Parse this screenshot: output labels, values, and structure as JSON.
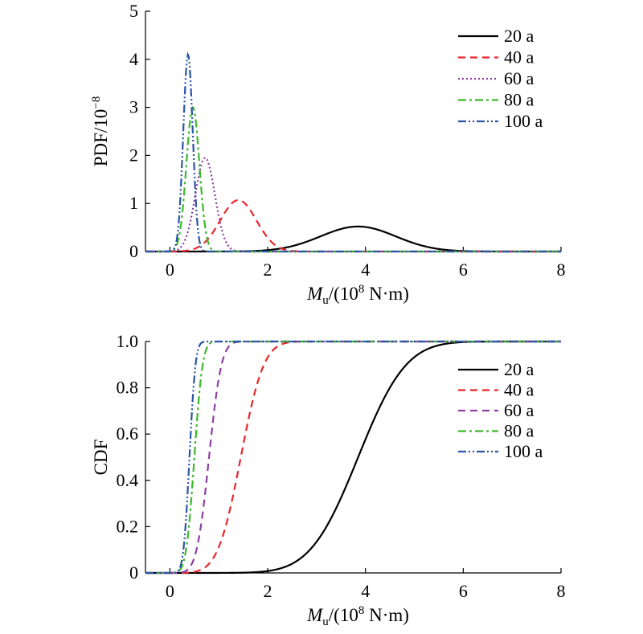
{
  "chart_data": [
    {
      "type": "line",
      "id": "pdf",
      "ylabel": "PDF/10",
      "ylabel_exponent": "−8",
      "xlabel_main": "M",
      "xlabel_sub": "u",
      "xlabel_rest": "/(10",
      "xlabel_exp": "8",
      "xlabel_unit": " N·m)",
      "xlim": [
        -0.5,
        8
      ],
      "ylim": [
        0,
        5
      ],
      "xticks": [
        0,
        2,
        4,
        6,
        8
      ],
      "yticks": [
        0,
        1,
        2,
        3,
        4,
        5
      ],
      "ytick_labels": [
        "0",
        "1",
        "2",
        "3",
        "4",
        "5"
      ],
      "legend_position": "top-right",
      "series": [
        {
          "name": "20 a",
          "color": "#000000",
          "dash": "solid",
          "peak_x": 3.85,
          "peak_y": 0.52,
          "sd": 0.77
        },
        {
          "name": "40 a",
          "color": "#e8262b",
          "dash": "dashed",
          "peak_x": 1.4,
          "peak_y": 1.07,
          "sd": 0.37
        },
        {
          "name": "60 a",
          "color": "#8e3fa3",
          "dash": "dotted",
          "peak_x": 0.72,
          "peak_y": 1.95,
          "sd": 0.2
        },
        {
          "name": "80 a",
          "color": "#3cb82d",
          "dash": "dashdot",
          "peak_x": 0.47,
          "peak_y": 3.0,
          "sd": 0.133
        },
        {
          "name": "100 a",
          "color": "#2b55a6",
          "dash": "dashdotdot",
          "peak_x": 0.37,
          "peak_y": 4.1,
          "sd": 0.097
        }
      ]
    },
    {
      "type": "line",
      "id": "cdf",
      "ylabel": "CDF",
      "xlabel_main": "M",
      "xlabel_sub": "u",
      "xlabel_rest": "/(10",
      "xlabel_exp": "8",
      "xlabel_unit": " N·m)",
      "xlim": [
        -0.5,
        8
      ],
      "ylim": [
        0,
        1.0
      ],
      "xticks": [
        0,
        2,
        4,
        6,
        8
      ],
      "yticks": [
        0,
        0.2,
        0.4,
        0.6,
        0.8,
        1.0
      ],
      "ytick_labels": [
        "0",
        "0.2",
        "0.4",
        "0.6",
        "0.8",
        "1.0"
      ],
      "legend_position": "right",
      "series": [
        {
          "name": "20 a",
          "color": "#000000",
          "dash": "solid",
          "median": 3.85,
          "sd": 0.77
        },
        {
          "name": "40 a",
          "color": "#e8262b",
          "dash": "dashed",
          "median": 1.45,
          "sd": 0.37
        },
        {
          "name": "60 a",
          "color": "#8e3fa3",
          "dash": "dashed",
          "median": 0.8,
          "sd": 0.2
        },
        {
          "name": "80 a",
          "color": "#3cb82d",
          "dash": "dashdot",
          "median": 0.5,
          "sd": 0.133
        },
        {
          "name": "100 a",
          "color": "#2b55a6",
          "dash": "dashdotdot",
          "median": 0.4,
          "sd": 0.097
        }
      ]
    }
  ]
}
